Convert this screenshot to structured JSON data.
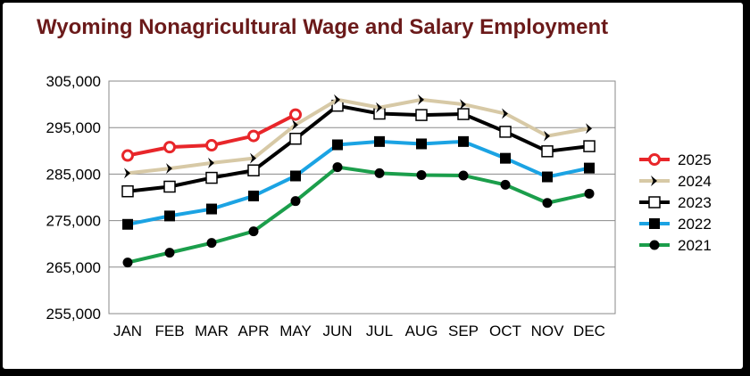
{
  "chart_data": {
    "type": "line",
    "title": "Wyoming Nonagricultural Wage and Salary Employment",
    "xlabel": "",
    "ylabel": "",
    "categories": [
      "JAN",
      "FEB",
      "MAR",
      "APR",
      "MAY",
      "JUN",
      "JUL",
      "AUG",
      "SEP",
      "OCT",
      "NOV",
      "DEC"
    ],
    "y_ticks": [
      "255,000",
      "265,000",
      "275,000",
      "285,000",
      "295,000",
      "305,000"
    ],
    "ylim": [
      255000,
      305000
    ],
    "grid": "horizontal",
    "legend_position": "right",
    "series": [
      {
        "name": "2025",
        "color": "#e8262a",
        "marker": "open-circle",
        "values": [
          289000,
          290800,
          291200,
          293200,
          297800,
          null,
          null,
          null,
          null,
          null,
          null,
          null
        ]
      },
      {
        "name": "2024",
        "color": "#d7c9a6",
        "marker": "chevron",
        "values": [
          285200,
          286200,
          287400,
          288400,
          295600,
          301000,
          299300,
          301000,
          300000,
          298000,
          293200,
          294800
        ]
      },
      {
        "name": "2023",
        "color": "#000000",
        "marker": "open-square",
        "values": [
          281300,
          282300,
          284200,
          285800,
          292600,
          299700,
          298000,
          297700,
          297900,
          294100,
          289900,
          291000
        ]
      },
      {
        "name": "2022",
        "color": "#1ba3e3",
        "marker": "filled-square",
        "values": [
          274200,
          276000,
          277500,
          280300,
          284600,
          291300,
          292000,
          291500,
          292000,
          288400,
          284400,
          286300
        ]
      },
      {
        "name": "2021",
        "color": "#1b9e4b",
        "marker": "filled-circle",
        "values": [
          266000,
          268100,
          270200,
          272700,
          279200,
          286500,
          285200,
          284800,
          284700,
          282700,
          278800,
          280800
        ]
      }
    ]
  }
}
